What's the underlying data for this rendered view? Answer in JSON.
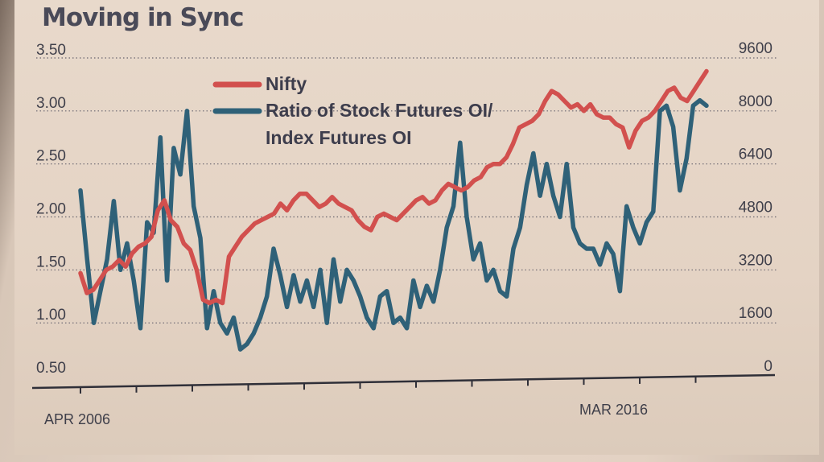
{
  "chart_data": {
    "type": "line",
    "title": "Moving in Sync",
    "x_labels": [
      "APR 2006",
      "MAR 2016"
    ],
    "left_axis": {
      "ylim": [
        0.5,
        3.5
      ],
      "ticks": [
        "0.50",
        "1.00",
        "1.50",
        "2.00",
        "2.50",
        "3.00",
        "3.50"
      ]
    },
    "right_axis": {
      "ylim": [
        0,
        9600
      ],
      "ticks": [
        "0",
        "1600",
        "3200",
        "4800",
        "6400",
        "8000",
        "9600"
      ]
    },
    "series": [
      {
        "name": "Nifty",
        "axis": "right",
        "color": "#d2504e",
        "values": [
          3100,
          2500,
          2600,
          2900,
          3200,
          3300,
          3500,
          3300,
          3700,
          3900,
          4000,
          4200,
          5000,
          5300,
          4700,
          4500,
          4000,
          3800,
          3200,
          2300,
          2200,
          2300,
          2200,
          3600,
          3900,
          4200,
          4400,
          4600,
          4700,
          4800,
          4900,
          5200,
          5000,
          5300,
          5500,
          5500,
          5300,
          5100,
          5200,
          5400,
          5200,
          5100,
          5000,
          4700,
          4500,
          4400,
          4800,
          4900,
          4800,
          4700,
          4900,
          5100,
          5300,
          5400,
          5200,
          5300,
          5600,
          5800,
          5700,
          5600,
          5700,
          5900,
          6000,
          6300,
          6400,
          6400,
          6600,
          7000,
          7500,
          7600,
          7700,
          7900,
          8300,
          8600,
          8500,
          8300,
          8100,
          8200,
          8000,
          8200,
          7900,
          7800,
          7800,
          7600,
          7500,
          6900,
          7400,
          7700,
          7800,
          8000,
          8300,
          8600,
          8700,
          8400,
          8300,
          8600,
          8900,
          9200
        ]
      },
      {
        "name": "Ratio of Stock Futures OI/ Index Futures OI",
        "axis": "left",
        "color": "#2f6178",
        "values": [
          2.25,
          1.6,
          1.0,
          1.3,
          1.6,
          2.15,
          1.5,
          1.75,
          1.4,
          0.95,
          1.95,
          1.85,
          2.75,
          1.4,
          2.65,
          2.4,
          3.0,
          2.1,
          1.8,
          0.95,
          1.3,
          1.0,
          0.9,
          1.05,
          0.75,
          0.8,
          0.9,
          1.05,
          1.25,
          1.7,
          1.45,
          1.15,
          1.45,
          1.2,
          1.4,
          1.15,
          1.5,
          1.0,
          1.6,
          1.2,
          1.5,
          1.4,
          1.25,
          1.05,
          0.95,
          1.25,
          1.3,
          1.0,
          1.05,
          0.95,
          1.4,
          1.15,
          1.35,
          1.2,
          1.5,
          1.9,
          2.1,
          2.7,
          2.0,
          1.6,
          1.75,
          1.4,
          1.5,
          1.3,
          1.25,
          1.7,
          1.9,
          2.3,
          2.6,
          2.2,
          2.5,
          2.2,
          2.0,
          2.5,
          1.9,
          1.75,
          1.7,
          1.7,
          1.55,
          1.75,
          1.65,
          1.3,
          2.1,
          1.9,
          1.75,
          1.95,
          2.05,
          3.0,
          3.05,
          2.85,
          2.25,
          2.55,
          3.05,
          3.1,
          3.05
        ]
      }
    ],
    "legend": {
      "position": "upper-left"
    },
    "grid": "dotted horizontal"
  }
}
